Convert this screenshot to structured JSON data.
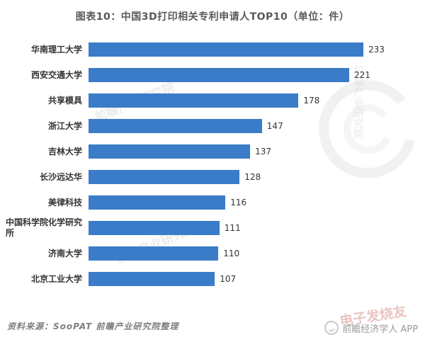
{
  "title": "图表10：中国3D打印相关专利申请人TOP10（单位：件）",
  "chart_data": {
    "type": "bar",
    "orientation": "horizontal",
    "title": "图表10：中国3D打印相关专利申请人TOP10（单位：件）",
    "unit": "件",
    "categories": [
      "华南理工大学",
      "西安交通大学",
      "共享模具",
      "浙江大学",
      "吉林大学",
      "长沙远达华",
      "美律科技",
      "中国科学院化学研究所",
      "济南大学",
      "北京工业大学"
    ],
    "values": [
      233,
      221,
      178,
      147,
      137,
      128,
      116,
      111,
      110,
      107
    ],
    "xlim": [
      0,
      250
    ],
    "value_labels": true,
    "legend": "none",
    "grid": false,
    "bar_color": "#3A7CC8"
  },
  "footer": {
    "source": "资料来源：SooPAT  前瞻产业研究院整理"
  },
  "watermark": {
    "diagonal": "前瞻产业研究院",
    "logo_text": "前瞻经济学人 APP",
    "corner": "电子发烧友"
  },
  "colors": {
    "bar": "#3A7CC8",
    "title": "#595959",
    "label": "#333333",
    "value": "#333333",
    "footer": "#808080"
  }
}
